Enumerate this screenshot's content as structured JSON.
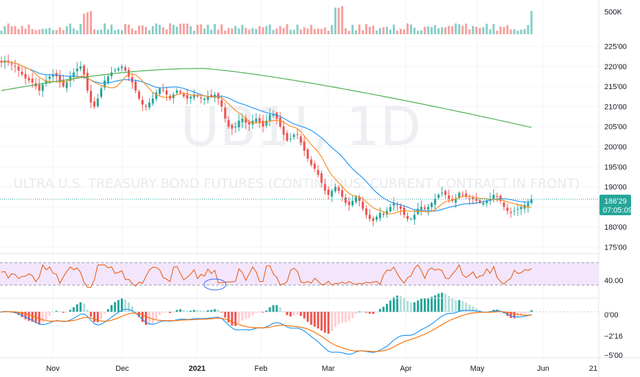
{
  "watermark": {
    "symbol": "UB1!, 1D",
    "description": "ULTRA U.S. TREASURY BOND FUTURES (CONTINUOUS: CURRENT CONTRACT IN FRONT)"
  },
  "last_price": {
    "label": "186'29",
    "countdown": "07:05:09",
    "value": 186.9
  },
  "colors": {
    "up": "#26a69a",
    "down": "#ef5350",
    "sma_fast": "#ff8c1a",
    "sma_mid": "#2196f3",
    "sma_slow": "#4caf50",
    "rsi_line": "#e65100",
    "rsi_band": "#f3e5fc",
    "macd": "#2196f3",
    "signal": "#ff6d00",
    "hist_up": "#26a69a",
    "hist_down": "#ef5350",
    "hist_up_light": "#b2dfdb",
    "hist_down_light": "#ffcdd2",
    "grid": "#f0f3fa",
    "annotation": "#2962ff"
  },
  "chart_data": {
    "type": "candlestick",
    "x_ticks": [
      "Nov",
      "Dec",
      "2021",
      "Feb",
      "Mar",
      "Apr",
      "May",
      "Jun",
      "21"
    ],
    "volume": {
      "tick_labels": [
        "500K"
      ]
    },
    "price": {
      "y_ticks": [
        "225'00",
        "220'00",
        "215'00",
        "210'00",
        "205'00",
        "200'00",
        "195'00",
        "190'00",
        "180'00",
        "175'00"
      ],
      "ylim": [
        173,
        227
      ],
      "closes": [
        221.0,
        221.5,
        221.0,
        220.5,
        220.0,
        219.0,
        218.0,
        217.0,
        216.5,
        216.0,
        215.0,
        214.0,
        215.5,
        216.5,
        217.5,
        218.0,
        217.5,
        216.0,
        215.0,
        216.0,
        217.5,
        218.5,
        219.5,
        220.0,
        218.0,
        214.0,
        211.0,
        210.0,
        212.0,
        214.5,
        216.5,
        217.5,
        218.5,
        219.0,
        219.5,
        220.0,
        219.0,
        217.5,
        216.0,
        214.0,
        212.0,
        210.5,
        210.0,
        211.0,
        212.0,
        213.5,
        214.5,
        214.0,
        213.0,
        212.0,
        213.0,
        214.0,
        213.5,
        212.5,
        212.0,
        212.5,
        213.0,
        212.5,
        212.0,
        212.0,
        212.5,
        212.5,
        213.0,
        212.0,
        210.0,
        207.0,
        205.0,
        204.5,
        205.0,
        206.5,
        207.0,
        206.0,
        205.5,
        206.5,
        207.0,
        206.0,
        205.0,
        206.5,
        208.0,
        208.0,
        207.0,
        205.0,
        203.0,
        201.5,
        202.0,
        203.0,
        203.0,
        201.0,
        199.0,
        197.0,
        195.5,
        194.5,
        193.0,
        191.0,
        189.0,
        188.0,
        189.0,
        190.0,
        189.0,
        187.5,
        186.0,
        185.5,
        186.5,
        187.5,
        186.5,
        184.5,
        183.0,
        182.0,
        181.5,
        182.5,
        183.5,
        183.0,
        184.0,
        185.0,
        186.0,
        185.5,
        184.5,
        183.0,
        182.0,
        182.0,
        183.0,
        184.5,
        185.0,
        184.5,
        185.0,
        186.0,
        187.0,
        188.0,
        188.5,
        188.0,
        187.0,
        186.5,
        187.0,
        188.5,
        188.0,
        187.5,
        187.0,
        187.0,
        186.5,
        186.0,
        186.0,
        186.5,
        187.0,
        188.0,
        187.5,
        186.5,
        185.0,
        184.0,
        183.5,
        184.0,
        184.5,
        185.0,
        185.5,
        186.0,
        186.9
      ],
      "sma_fast": {
        "start": 222.0,
        "end": 185.5
      },
      "sma_mid": {
        "start": 222.0,
        "end": 184.5
      },
      "sma_slow": {
        "start": 214.0,
        "peak": 219.5,
        "end": 204.8
      }
    },
    "rsi": {
      "band": [
        30,
        70
      ],
      "tick_labels": [
        "40.00"
      ]
    },
    "macd": {
      "tick_labels": [
        "0'00",
        "−2'16",
        "−5'00"
      ],
      "min": -5.2,
      "max": 0.4
    }
  }
}
